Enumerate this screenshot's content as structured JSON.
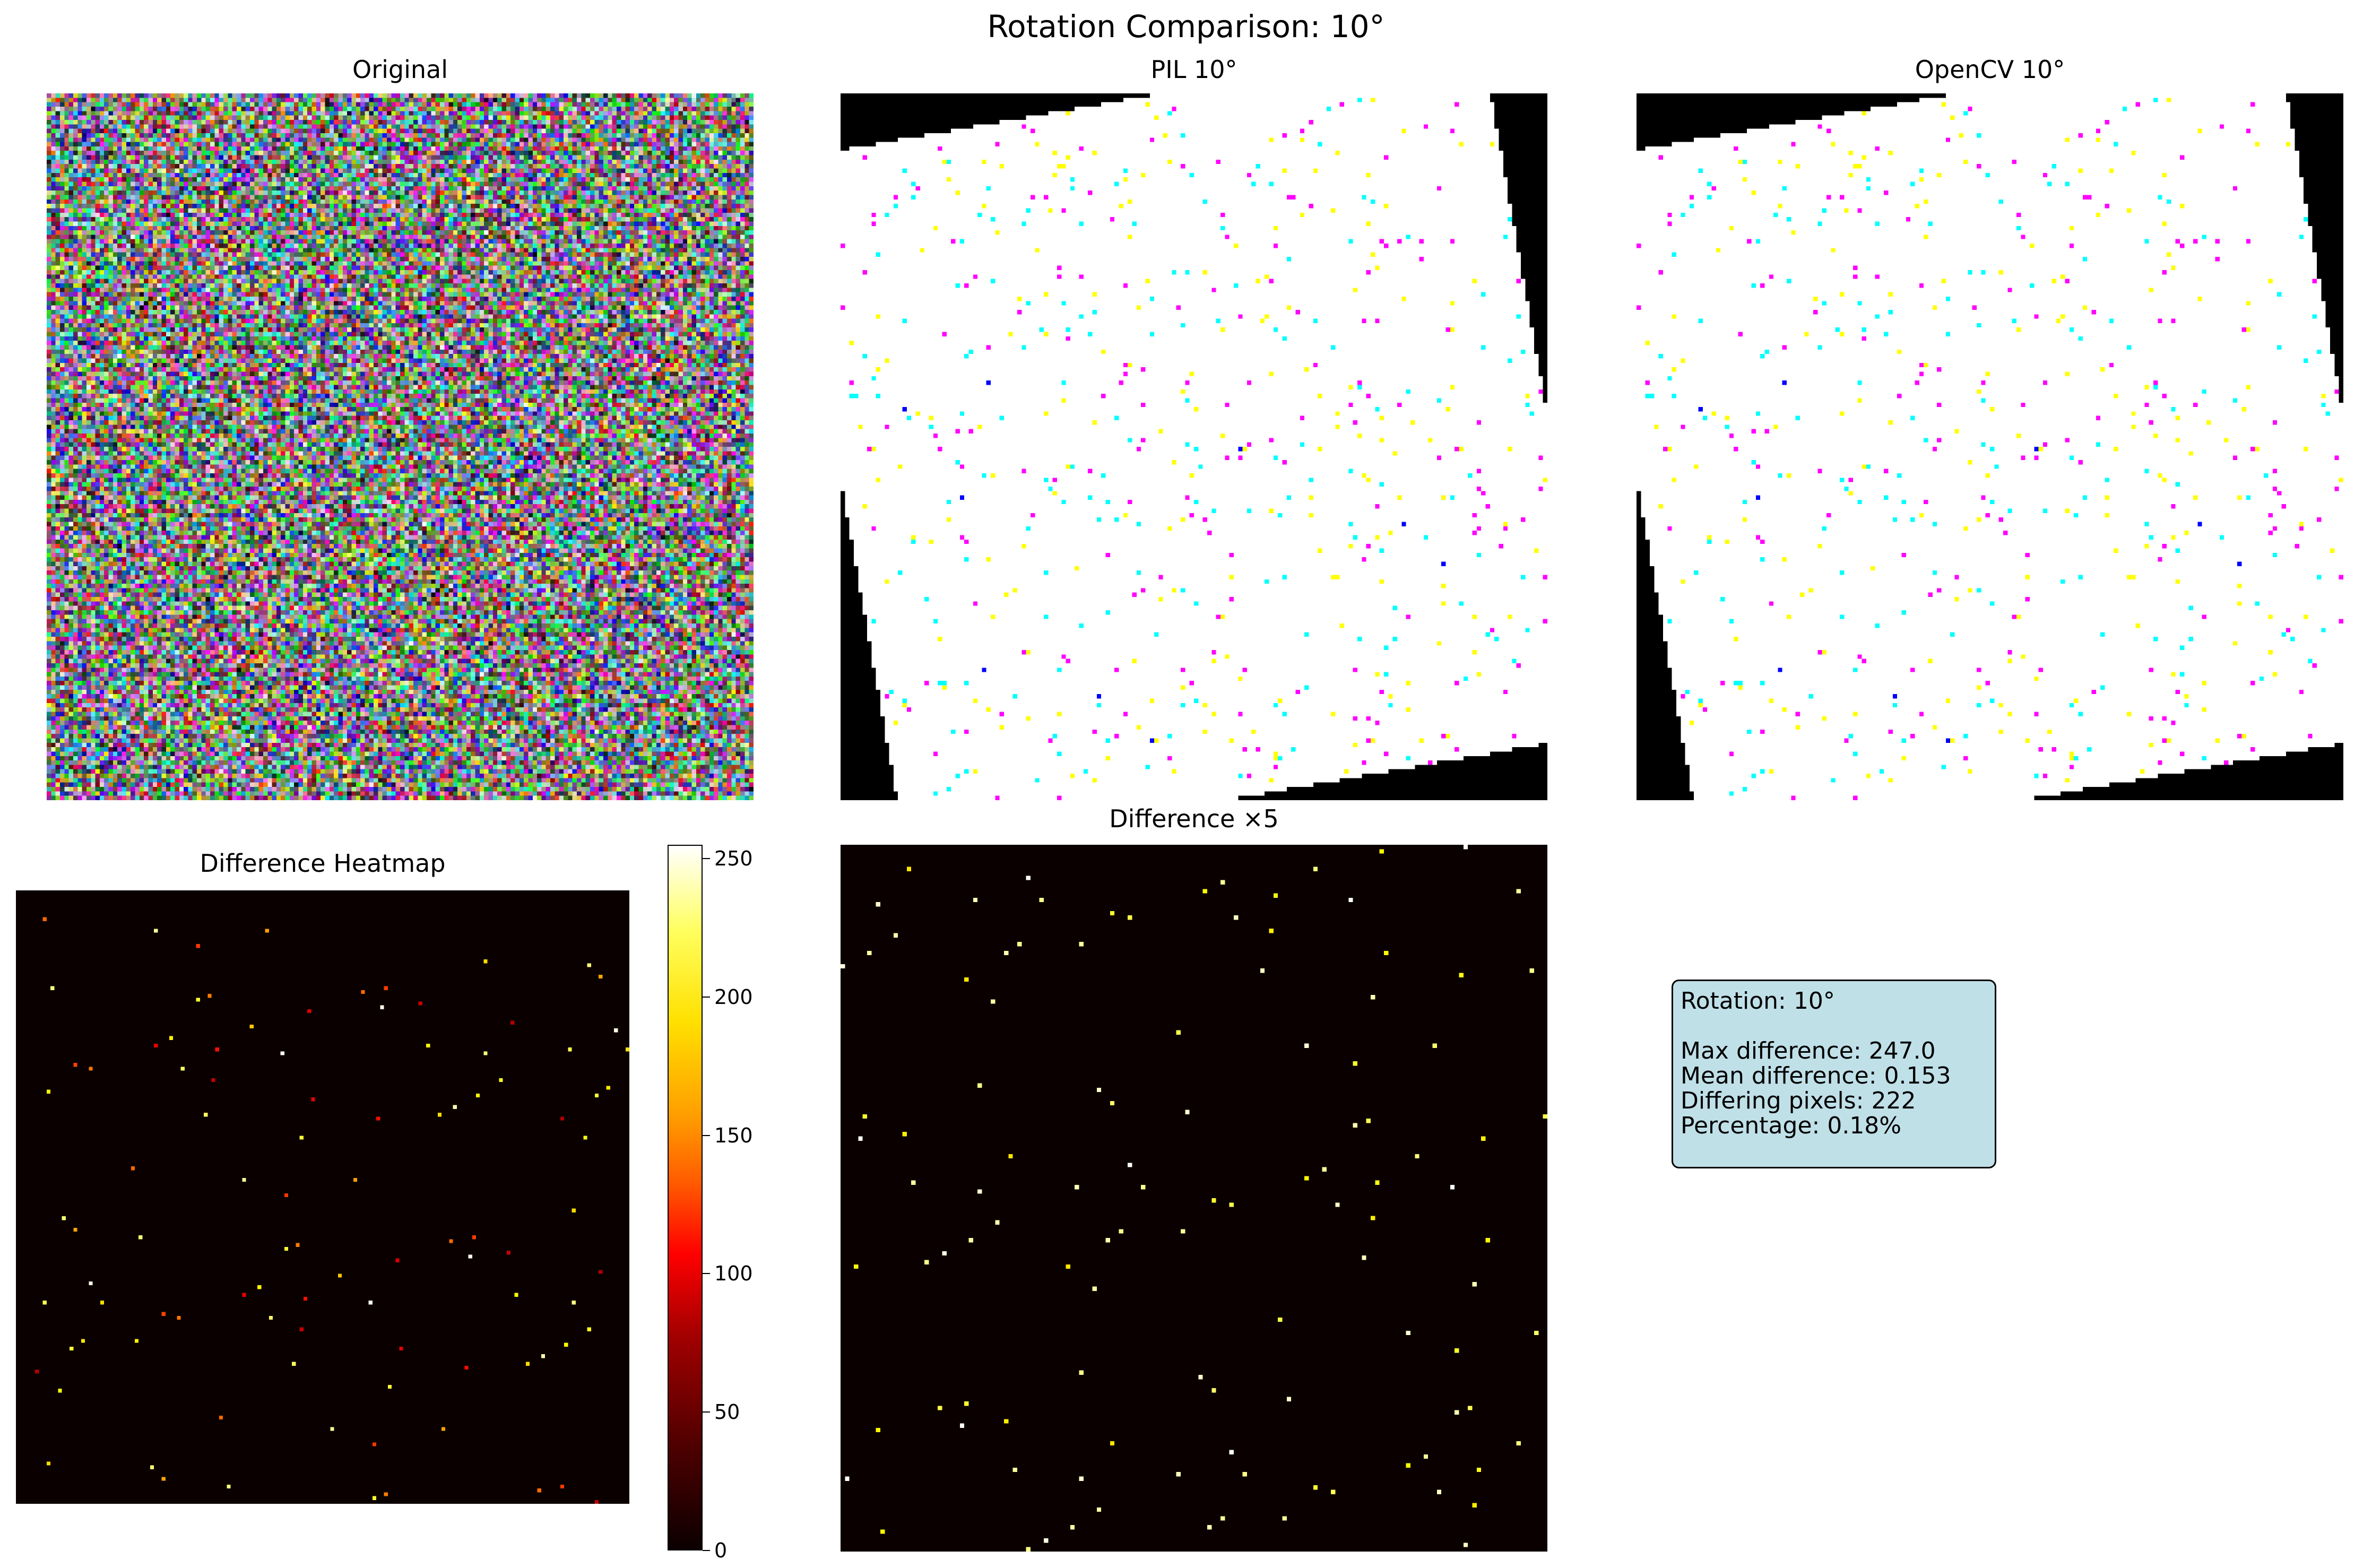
{
  "figure_title": "Rotation Comparison: 10°",
  "panels": {
    "original": {
      "title": "Original"
    },
    "pil": {
      "title": "PIL 10°"
    },
    "opencv": {
      "title": "OpenCV 10°"
    },
    "heatmap": {
      "title": "Difference Heatmap"
    },
    "diff5": {
      "title": "Difference ×5"
    }
  },
  "colorbar": {
    "ticks": [
      "0",
      "50",
      "100",
      "150",
      "200",
      "250"
    ],
    "range": [
      0,
      255
    ],
    "colormap": "hot"
  },
  "stats": {
    "rotation": "Rotation: 10°",
    "max_difference": "Max difference: 247.0",
    "mean_difference": "Mean difference: 0.153",
    "differing_pixels": "Differing pixels: 222",
    "percentage": "Percentage: 0.18%"
  },
  "chart_data": [
    {
      "type": "heatmap",
      "title": "Original",
      "content": "random RGB noise"
    },
    {
      "type": "heatmap",
      "title": "PIL 10°",
      "rotation_deg": 10
    },
    {
      "type": "heatmap",
      "title": "OpenCV 10°",
      "rotation_deg": 10
    },
    {
      "type": "heatmap",
      "title": "Difference Heatmap",
      "colorbar_range": [
        0,
        255
      ],
      "colorbar_ticks": [
        0,
        50,
        100,
        150,
        200,
        250
      ]
    },
    {
      "type": "heatmap",
      "title": "Difference ×5"
    }
  ]
}
